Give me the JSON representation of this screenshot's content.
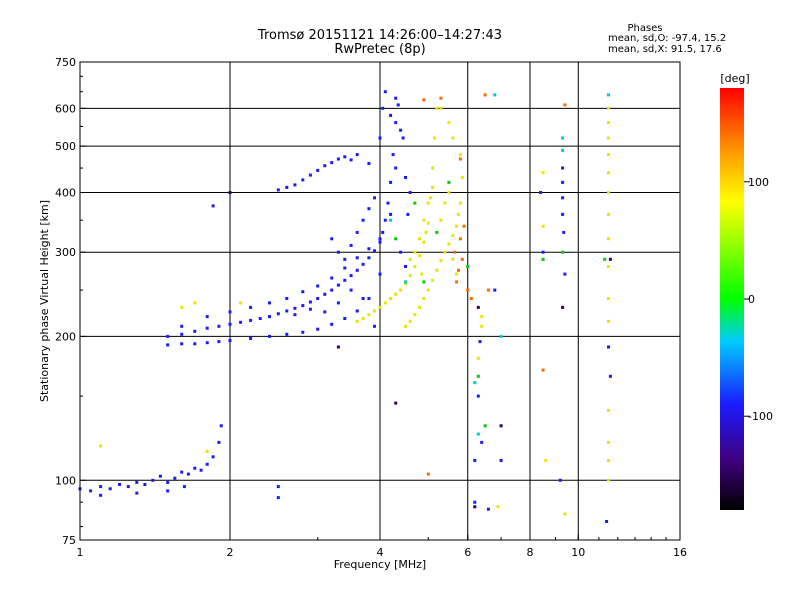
{
  "chart_data": {
    "type": "scatter",
    "title": "Tromsø 20151121 14:26:00–14:27:43",
    "subtitle": "RwPretec (8p)",
    "xlabel": "Frequency [MHz]",
    "ylabel": "Stationary phase Virtual Height [km]",
    "x_scale": "log2",
    "y_scale": "log",
    "xlim": [
      1,
      16
    ],
    "ylim": [
      75,
      750
    ],
    "x_ticks": [
      "1",
      "2",
      "4",
      "6",
      "8",
      "10",
      "16"
    ],
    "y_ticks": [
      "750",
      "600",
      "500",
      "400",
      "300",
      "200",
      "100",
      "75"
    ],
    "x_gridlines": [
      2,
      4,
      6,
      8,
      10
    ],
    "y_gridlines": [
      100,
      200,
      300,
      400,
      500,
      600
    ],
    "phase_header": "Phases",
    "phase_o": "mean, sd,O: -97.4, 15.2",
    "phase_x": "mean, sd,X:  91.5, 17.6",
    "colorbar": {
      "label": "[deg]",
      "range": [
        -180,
        180
      ],
      "ticks": [
        "100",
        "0",
        "-100"
      ]
    },
    "series": [
      {
        "name": "O",
        "color": "#1a1aff",
        "points": [
          [
            1.0,
            96
          ],
          [
            1.05,
            95
          ],
          [
            1.1,
            97
          ],
          [
            1.15,
            96
          ],
          [
            1.2,
            98
          ],
          [
            1.25,
            97
          ],
          [
            1.3,
            99
          ],
          [
            1.35,
            98
          ],
          [
            1.4,
            100
          ],
          [
            1.45,
            102
          ],
          [
            1.5,
            99
          ],
          [
            1.55,
            101
          ],
          [
            1.6,
            104
          ],
          [
            1.65,
            103
          ],
          [
            1.7,
            106
          ],
          [
            1.75,
            105
          ],
          [
            1.8,
            108
          ],
          [
            1.85,
            112
          ],
          [
            1.9,
            120
          ],
          [
            1.92,
            130
          ],
          [
            1.1,
            93
          ],
          [
            1.3,
            94
          ],
          [
            1.5,
            95
          ],
          [
            1.62,
            97
          ],
          [
            1.5,
            200
          ],
          [
            1.6,
            202
          ],
          [
            1.7,
            205
          ],
          [
            1.8,
            208
          ],
          [
            1.9,
            210
          ],
          [
            2.0,
            212
          ],
          [
            2.1,
            214
          ],
          [
            2.2,
            216
          ],
          [
            2.3,
            218
          ],
          [
            2.4,
            220
          ],
          [
            2.5,
            223
          ],
          [
            2.6,
            226
          ],
          [
            2.7,
            229
          ],
          [
            2.8,
            232
          ],
          [
            2.9,
            236
          ],
          [
            3.0,
            240
          ],
          [
            3.1,
            245
          ],
          [
            3.2,
            250
          ],
          [
            3.3,
            256
          ],
          [
            3.4,
            262
          ],
          [
            3.5,
            268
          ],
          [
            3.6,
            275
          ],
          [
            3.7,
            283
          ],
          [
            3.8,
            292
          ],
          [
            3.9,
            302
          ],
          [
            4.0,
            315
          ],
          [
            4.05,
            330
          ],
          [
            4.1,
            350
          ],
          [
            4.15,
            380
          ],
          [
            4.2,
            420
          ],
          [
            4.25,
            480
          ],
          [
            4.3,
            560
          ],
          [
            4.3,
            630
          ],
          [
            1.5,
            192
          ],
          [
            1.6,
            193
          ],
          [
            1.7,
            193
          ],
          [
            1.8,
            194
          ],
          [
            1.9,
            195
          ],
          [
            2.0,
            196
          ],
          [
            2.2,
            198
          ],
          [
            2.4,
            200
          ],
          [
            2.6,
            202
          ],
          [
            2.8,
            204
          ],
          [
            3.0,
            207
          ],
          [
            3.2,
            212
          ],
          [
            3.4,
            218
          ],
          [
            3.6,
            226
          ],
          [
            3.8,
            240
          ],
          [
            4.0,
            270
          ],
          [
            1.6,
            210
          ],
          [
            1.8,
            220
          ],
          [
            2.0,
            225
          ],
          [
            2.2,
            230
          ],
          [
            2.4,
            235
          ],
          [
            2.6,
            240
          ],
          [
            2.8,
            248
          ],
          [
            3.0,
            255
          ],
          [
            3.2,
            265
          ],
          [
            3.4,
            278
          ],
          [
            3.6,
            292
          ],
          [
            3.8,
            305
          ],
          [
            4.0,
            320
          ],
          [
            4.2,
            360
          ],
          [
            4.4,
            300
          ],
          [
            4.5,
            280
          ],
          [
            2.5,
            405
          ],
          [
            2.6,
            410
          ],
          [
            2.7,
            415
          ],
          [
            2.8,
            425
          ],
          [
            2.9,
            435
          ],
          [
            3.0,
            445
          ],
          [
            3.1,
            455
          ],
          [
            3.2,
            462
          ],
          [
            3.3,
            470
          ],
          [
            3.4,
            475
          ],
          [
            3.5,
            468
          ],
          [
            3.6,
            480
          ],
          [
            3.8,
            460
          ],
          [
            4.0,
            520
          ],
          [
            4.05,
            600
          ],
          [
            4.1,
            650
          ],
          [
            4.2,
            580
          ],
          [
            4.35,
            610
          ],
          [
            4.4,
            540
          ],
          [
            4.3,
            450
          ],
          [
            4.45,
            520
          ],
          [
            4.5,
            430
          ],
          [
            4.6,
            400
          ],
          [
            4.55,
            360
          ],
          [
            3.2,
            320
          ],
          [
            3.3,
            300
          ],
          [
            3.4,
            290
          ],
          [
            3.5,
            310
          ],
          [
            3.6,
            330
          ],
          [
            3.7,
            350
          ],
          [
            3.8,
            370
          ],
          [
            3.9,
            390
          ],
          [
            2.0,
            400
          ],
          [
            1.85,
            375
          ],
          [
            2.5,
            97
          ],
          [
            2.5,
            92
          ],
          [
            6.2,
            90
          ],
          [
            6.3,
            150
          ],
          [
            6.6,
            87
          ],
          [
            6.4,
            120
          ],
          [
            6.2,
            110
          ],
          [
            6.35,
            195
          ],
          [
            7.0,
            110
          ],
          [
            8.4,
            400
          ],
          [
            8.5,
            300
          ],
          [
            9.2,
            100
          ],
          [
            9.3,
            450
          ],
          [
            9.3,
            420
          ],
          [
            9.3,
            390
          ],
          [
            9.3,
            360
          ],
          [
            9.35,
            330
          ],
          [
            9.4,
            270
          ],
          [
            11.5,
            190
          ],
          [
            11.6,
            165
          ],
          [
            11.4,
            82
          ],
          [
            6.8,
            250
          ],
          [
            4.0,
            230
          ],
          [
            3.9,
            210
          ],
          [
            3.7,
            240
          ],
          [
            3.5,
            250
          ],
          [
            3.3,
            235
          ],
          [
            3.1,
            225
          ],
          [
            2.9,
            228
          ],
          [
            2.7,
            222
          ]
        ]
      },
      {
        "name": "X",
        "color": "#e6e600",
        "points": [
          [
            3.6,
            215
          ],
          [
            3.7,
            218
          ],
          [
            3.8,
            222
          ],
          [
            3.9,
            226
          ],
          [
            4.0,
            230
          ],
          [
            4.1,
            235
          ],
          [
            4.2,
            240
          ],
          [
            4.3,
            245
          ],
          [
            4.4,
            250
          ],
          [
            4.5,
            258
          ],
          [
            4.6,
            268
          ],
          [
            4.7,
            280
          ],
          [
            4.8,
            295
          ],
          [
            4.9,
            315
          ],
          [
            5.0,
            345
          ],
          [
            5.05,
            390
          ],
          [
            5.1,
            450
          ],
          [
            5.15,
            520
          ],
          [
            5.2,
            600
          ],
          [
            4.5,
            210
          ],
          [
            4.6,
            215
          ],
          [
            4.7,
            222
          ],
          [
            4.8,
            230
          ],
          [
            4.9,
            240
          ],
          [
            5.0,
            250
          ],
          [
            5.1,
            262
          ],
          [
            5.2,
            275
          ],
          [
            5.3,
            288
          ],
          [
            5.4,
            300
          ],
          [
            5.5,
            312
          ],
          [
            5.6,
            325
          ],
          [
            5.7,
            340
          ],
          [
            5.75,
            360
          ],
          [
            5.8,
            380
          ],
          [
            5.85,
            430
          ],
          [
            5.8,
            480
          ],
          [
            5.6,
            520
          ],
          [
            5.5,
            560
          ],
          [
            5.3,
            600
          ],
          [
            4.8,
            320
          ],
          [
            4.9,
            350
          ],
          [
            5.0,
            380
          ],
          [
            5.1,
            410
          ],
          [
            4.7,
            300
          ],
          [
            4.6,
            290
          ],
          [
            4.85,
            270
          ],
          [
            4.95,
            330
          ],
          [
            5.3,
            350
          ],
          [
            5.4,
            380
          ],
          [
            5.5,
            400
          ],
          [
            5.6,
            290
          ],
          [
            5.7,
            270
          ],
          [
            1.1,
            118
          ],
          [
            1.7,
            235
          ],
          [
            1.6,
            230
          ],
          [
            2.1,
            235
          ],
          [
            1.8,
            115
          ],
          [
            11.5,
            600
          ],
          [
            11.5,
            560
          ],
          [
            11.5,
            520
          ],
          [
            11.5,
            480
          ],
          [
            11.5,
            440
          ],
          [
            11.5,
            400
          ],
          [
            11.5,
            360
          ],
          [
            11.5,
            320
          ],
          [
            11.5,
            280
          ],
          [
            11.5,
            240
          ],
          [
            11.5,
            215
          ],
          [
            11.5,
            140
          ],
          [
            11.5,
            120
          ],
          [
            11.5,
            110
          ],
          [
            11.5,
            100
          ],
          [
            8.5,
            440
          ],
          [
            8.5,
            340
          ],
          [
            8.6,
            110
          ],
          [
            9.4,
            85
          ],
          [
            6.4,
            210
          ],
          [
            6.4,
            220
          ],
          [
            6.3,
            180
          ],
          [
            6.9,
            88
          ]
        ]
      },
      {
        "name": "other",
        "color": "#00cc00",
        "points": [
          [
            4.7,
            380
          ],
          [
            5.2,
            330
          ],
          [
            5.5,
            420
          ],
          [
            6.0,
            280
          ],
          [
            6.3,
            165
          ],
          [
            8.5,
            290
          ],
          [
            11.3,
            290
          ],
          [
            9.3,
            300
          ],
          [
            6.5,
            130
          ],
          [
            4.3,
            320
          ],
          [
            4.9,
            260
          ]
        ]
      },
      {
        "name": "hot",
        "color": "#ff6600",
        "points": [
          [
            5.7,
            260
          ],
          [
            5.75,
            275
          ],
          [
            5.65,
            300
          ],
          [
            5.8,
            320
          ],
          [
            5.9,
            340
          ],
          [
            5.85,
            290
          ],
          [
            6.5,
            640
          ],
          [
            5.3,
            630
          ],
          [
            5.8,
            470
          ],
          [
            6.0,
            250
          ],
          [
            6.1,
            240
          ],
          [
            8.5,
            170
          ],
          [
            9.4,
            610
          ],
          [
            5.0,
            103
          ],
          [
            6.6,
            250
          ],
          [
            4.9,
            625
          ]
        ]
      },
      {
        "name": "cyan",
        "color": "#00cccc",
        "points": [
          [
            6.3,
            125
          ],
          [
            6.8,
            640
          ],
          [
            9.3,
            520
          ],
          [
            9.3,
            490
          ],
          [
            11.5,
            640
          ],
          [
            4.2,
            350
          ],
          [
            4.5,
            260
          ],
          [
            6.2,
            160
          ],
          [
            7.0,
            200
          ]
        ]
      },
      {
        "name": "dark",
        "color": "#330066",
        "points": [
          [
            2.0,
            400
          ],
          [
            3.3,
            190
          ],
          [
            6.3,
            230
          ],
          [
            9.3,
            230
          ],
          [
            11.6,
            290
          ],
          [
            4.3,
            145
          ],
          [
            7.0,
            130
          ],
          [
            6.2,
            88
          ]
        ]
      }
    ]
  }
}
